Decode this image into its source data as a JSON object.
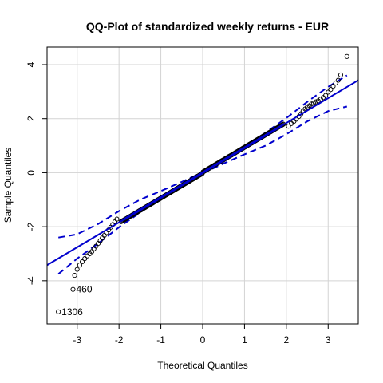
{
  "chart_data": {
    "type": "scatter",
    "title": "QQ-Plot of standardized weekly returns - EUR",
    "xlabel": "Theoretical Quantiles",
    "ylabel": "Sample Quantiles",
    "xlim": [
      -3.72,
      3.72
    ],
    "ylim": [
      -5.6,
      4.65
    ],
    "xticks": [
      -3,
      -2,
      -1,
      0,
      1,
      2,
      3
    ],
    "yticks": [
      -4,
      -2,
      0,
      2,
      4
    ],
    "grid": true,
    "colors": {
      "points": "#000000",
      "line": "#0000CD",
      "envelope": "#0000CD",
      "grid": "#D3D3D3"
    },
    "reference_line": {
      "slope": 0.92,
      "intercept": 0.0
    },
    "envelope_upper": [
      [
        -3.45,
        -2.4
      ],
      [
        -3.0,
        -2.28
      ],
      [
        -2.5,
        -1.9
      ],
      [
        -2.0,
        -1.42
      ],
      [
        -1.5,
        -1.0
      ],
      [
        -1.0,
        -0.68
      ],
      [
        -0.5,
        -0.34
      ],
      [
        0.0,
        0.02
      ],
      [
        0.5,
        0.48
      ],
      [
        1.0,
        0.94
      ],
      [
        1.5,
        1.48
      ],
      [
        2.0,
        2.02
      ],
      [
        2.5,
        2.62
      ],
      [
        3.0,
        3.18
      ],
      [
        3.45,
        3.6
      ]
    ],
    "envelope_lower": [
      [
        -3.45,
        -3.75
      ],
      [
        -3.0,
        -3.18
      ],
      [
        -2.5,
        -2.62
      ],
      [
        -2.0,
        -2.02
      ],
      [
        -1.5,
        -1.48
      ],
      [
        -1.0,
        -0.94
      ],
      [
        -0.5,
        -0.48
      ],
      [
        0.0,
        -0.02
      ],
      [
        0.5,
        0.34
      ],
      [
        1.0,
        0.68
      ],
      [
        1.5,
        1.0
      ],
      [
        2.0,
        1.42
      ],
      [
        2.5,
        1.9
      ],
      [
        3.0,
        2.28
      ],
      [
        3.45,
        2.45
      ]
    ],
    "labeled_points": [
      {
        "x": -3.45,
        "y": -5.15,
        "label": "1306"
      },
      {
        "x": -3.1,
        "y": -4.32,
        "label": "460"
      }
    ],
    "upper_tail": [
      [
        2.05,
        1.72
      ],
      [
        2.12,
        1.82
      ],
      [
        2.18,
        1.9
      ],
      [
        2.24,
        1.98
      ],
      [
        2.3,
        2.08
      ],
      [
        2.35,
        2.18
      ],
      [
        2.4,
        2.28
      ],
      [
        2.45,
        2.36
      ],
      [
        2.5,
        2.42
      ],
      [
        2.55,
        2.48
      ],
      [
        2.6,
        2.54
      ],
      [
        2.65,
        2.58
      ],
      [
        2.7,
        2.62
      ],
      [
        2.76,
        2.66
      ],
      [
        2.82,
        2.72
      ],
      [
        2.88,
        2.78
      ],
      [
        2.94,
        2.86
      ],
      [
        3.0,
        2.98
      ],
      [
        3.06,
        3.08
      ],
      [
        3.12,
        3.2
      ],
      [
        3.18,
        3.32
      ],
      [
        3.24,
        3.42
      ],
      [
        3.3,
        3.62
      ],
      [
        3.45,
        4.3
      ]
    ],
    "lower_tail": [
      [
        -2.05,
        -1.72
      ],
      [
        -2.1,
        -1.82
      ],
      [
        -2.15,
        -1.92
      ],
      [
        -2.2,
        -2.02
      ],
      [
        -2.25,
        -2.12
      ],
      [
        -2.3,
        -2.22
      ],
      [
        -2.35,
        -2.32
      ],
      [
        -2.4,
        -2.42
      ],
      [
        -2.45,
        -2.52
      ],
      [
        -2.5,
        -2.62
      ],
      [
        -2.55,
        -2.72
      ],
      [
        -2.6,
        -2.82
      ],
      [
        -2.65,
        -2.92
      ],
      [
        -2.7,
        -3.0
      ],
      [
        -2.76,
        -3.08
      ],
      [
        -2.82,
        -3.18
      ],
      [
        -2.88,
        -3.3
      ],
      [
        -2.94,
        -3.42
      ],
      [
        -3.0,
        -3.58
      ],
      [
        -3.06,
        -3.8
      ]
    ]
  }
}
